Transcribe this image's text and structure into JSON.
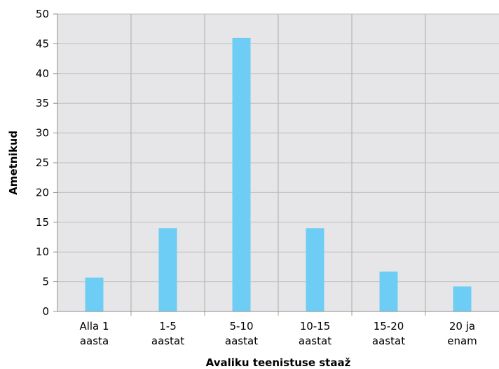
{
  "chart_data": {
    "type": "bar",
    "categories": [
      [
        "Alla 1",
        "aasta"
      ],
      [
        "1-5",
        "aastat"
      ],
      [
        "5-10",
        "aastat"
      ],
      [
        "10-15",
        "aastat"
      ],
      [
        "15-20",
        "aastat"
      ],
      [
        "20 ja",
        "enam"
      ]
    ],
    "values": [
      5.7,
      14,
      46,
      14,
      6.7,
      4.2
    ],
    "xlabel": "Avaliku teenistuse staaž",
    "ylabel": "Ametnikud",
    "ylim": [
      0,
      50
    ],
    "yticks": [
      "0",
      "5",
      "10",
      "15",
      "20",
      "25",
      "30",
      "35",
      "40",
      "45",
      "50"
    ],
    "grid": true,
    "colors": {
      "bar": "#6dcdf4",
      "plot_background": "#e6e6e8",
      "gridline": "#bdbdbd",
      "axis": "#8c8c8c"
    }
  }
}
